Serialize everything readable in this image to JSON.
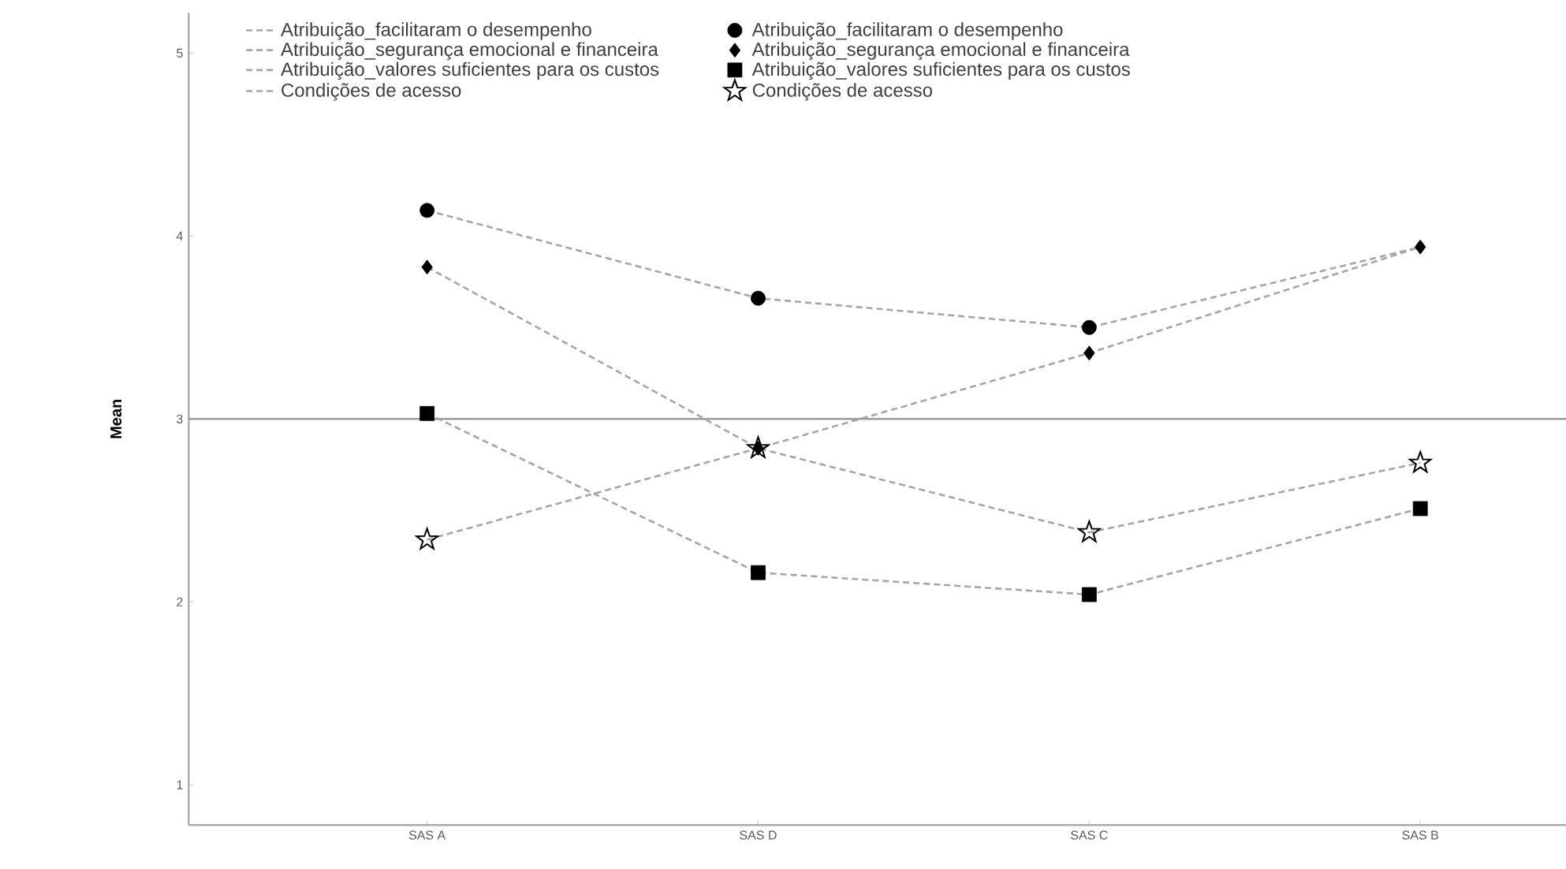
{
  "chart_data": {
    "type": "line",
    "ylabel": "Mean",
    "categories": [
      "SAS A",
      "SAS D",
      "SAS C",
      "SAS B"
    ],
    "ylim": [
      0.78,
      5.22
    ],
    "yticks": [
      1,
      2,
      3,
      4,
      5
    ],
    "grid": false,
    "legend": "top",
    "line_style": "dashed",
    "ref_lines": [
      {
        "axis": "y",
        "value": 3,
        "color": "#9a9a9a"
      }
    ],
    "series": [
      {
        "name": "Atribuição_facilitaram o desempenho",
        "marker": "none",
        "color": "#a6a6a6",
        "values": [
          4.14,
          3.66,
          3.5,
          3.94
        ]
      },
      {
        "name": "Atribuição_facilitaram o desempenho",
        "type": "scatter",
        "marker": "circle",
        "color": "#000000",
        "values": [
          4.14,
          3.66,
          3.5,
          null
        ]
      },
      {
        "name": "Atribuição_segurança emocional e financeira",
        "marker": "none",
        "color": "#a6a6a6",
        "values": [
          3.83,
          2.84,
          2.38,
          2.76
        ]
      },
      {
        "name": "Atribuição_segurança emocional e financeira",
        "type": "scatter",
        "marker": "diamond",
        "color": "#000000",
        "values": [
          3.83,
          2.84,
          3.36,
          3.94
        ]
      },
      {
        "name": "Atribuição_valores suficientes para os custos",
        "marker": "none",
        "color": "#a6a6a6",
        "values": [
          3.03,
          2.16,
          2.04,
          2.51
        ]
      },
      {
        "name": "Atribuição_valores suficientes para os custos",
        "type": "scatter",
        "marker": "square",
        "color": "#000000",
        "values": [
          3.03,
          2.16,
          2.04,
          2.51
        ]
      },
      {
        "name": "Condições de acesso",
        "marker": "none",
        "color": "#a6a6a6",
        "values": [
          2.34,
          2.84,
          3.36,
          3.94
        ]
      },
      {
        "name": "Condições de acesso",
        "type": "scatter",
        "marker": "star",
        "color": "#000000",
        "values": [
          2.34,
          2.84,
          2.38,
          2.76
        ]
      }
    ]
  }
}
